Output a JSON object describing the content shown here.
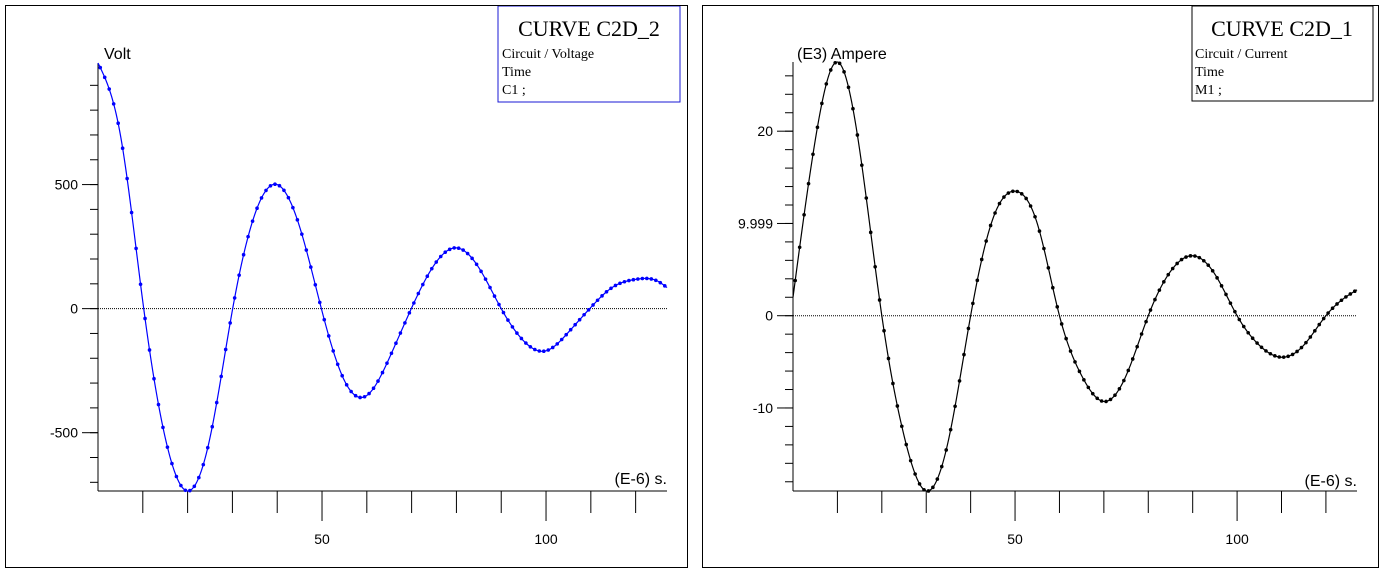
{
  "chart_data": [
    {
      "type": "line",
      "legend": {
        "title": "CURVE C2D_2",
        "lines": [
          "Circuit / Voltage",
          "Time",
          "C1 ;"
        ]
      },
      "ylabel": "Volt",
      "xlabel": "(E-6) s.",
      "xlim": [
        0,
        127
      ],
      "ylim": [
        -735,
        990
      ],
      "xticks": [
        50,
        100
      ],
      "yticks": [
        -500,
        0,
        500
      ],
      "ytick_labels": [
        "-500",
        "0",
        "500"
      ],
      "color": "#0000ff",
      "series": [
        {
          "x": [
            0,
            5,
            10,
            15,
            20,
            25,
            30,
            35,
            40,
            45,
            50,
            55,
            60,
            65,
            70,
            75,
            80,
            85,
            90,
            95,
            100,
            105,
            110,
            115,
            120,
            125,
            127
          ],
          "values": [
            990,
            700,
            28,
            -520,
            -735,
            -520,
            -6,
            380,
            500,
            330,
            -10,
            -290,
            -350,
            -200,
            3,
            175,
            245,
            165,
            0,
            -130,
            -170,
            -95,
            5,
            88,
            118,
            110,
            85
          ]
        }
      ]
    },
    {
      "type": "line",
      "legend": {
        "title": "CURVE C2D_1",
        "lines": [
          "Circuit / Current",
          "Time",
          "M1 ;"
        ]
      },
      "ylabel": "(E3) Ampere",
      "xlabel": "(E-6) s.",
      "xlim": [
        0,
        127
      ],
      "ylim": [
        -19,
        27.5
      ],
      "xticks": [
        50,
        100
      ],
      "yticks": [
        -10,
        0,
        9.999,
        20
      ],
      "ytick_labels": [
        "-10",
        "0",
        "9.999",
        "20"
      ],
      "color": "#000000",
      "series": [
        {
          "x": [
            0,
            5,
            10,
            15,
            20,
            25,
            30,
            35,
            40,
            45,
            50,
            55,
            60,
            65,
            70,
            75,
            80,
            85,
            90,
            95,
            100,
            105,
            110,
            115,
            120,
            125,
            127
          ],
          "values": [
            2,
            19,
            27.5,
            18,
            0,
            -13,
            -19,
            -13.5,
            0,
            10.5,
            13.5,
            10,
            0,
            -6.5,
            -9.3,
            -6.5,
            0,
            4.8,
            6.5,
            4.5,
            0,
            -3.2,
            -4.5,
            -3.2,
            0,
            2.2,
            2.8
          ]
        }
      ]
    }
  ]
}
